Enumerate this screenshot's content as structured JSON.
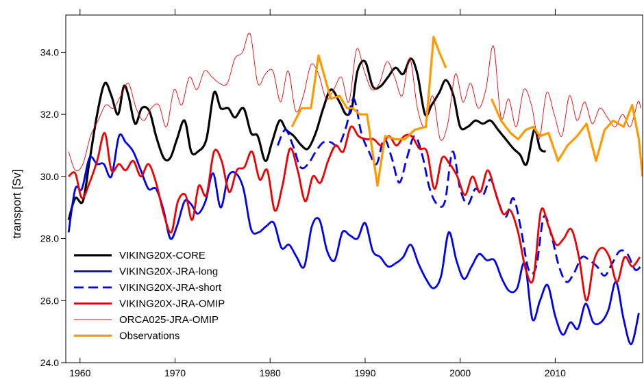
{
  "chart_data": {
    "type": "line",
    "ylabel": "transport [Sv]",
    "xlabel": "",
    "xlim": [
      1958.5,
      2019.2
    ],
    "ylim": [
      24.0,
      35.2
    ],
    "xticks": [
      1960,
      1970,
      1980,
      1990,
      2000,
      2010
    ],
    "xtick_labels": [
      "1960",
      "1970",
      "1980",
      "1990",
      "2000",
      "2010"
    ],
    "yticks": [
      24,
      26,
      28,
      30,
      32,
      34
    ],
    "ytick_labels": [
      "24.0",
      "26.0",
      "28.0",
      "30.0",
      "32.0",
      "34.0"
    ],
    "grid": false,
    "legend_position": "lower-left",
    "series": [
      {
        "name": "VIKING20X-CORE",
        "color": "#000000",
        "style": "solid",
        "width": 3.2,
        "x": [
          1958.8,
          1959.5,
          1960.3,
          1961,
          1961.8,
          1962.6,
          1963.3,
          1964,
          1964.6,
          1965.1,
          1965.8,
          1966.5,
          1967.3,
          1968,
          1968.8,
          1969.5,
          1970.2,
          1971,
          1971.7,
          1972.4,
          1973.3,
          1974.1,
          1974.8,
          1975.6,
          1976.3,
          1977.2,
          1978,
          1978.7,
          1979.5,
          1980.2,
          1981,
          1981.7,
          1982.5,
          1983.3,
          1984,
          1984.8,
          1985.6,
          1986.4,
          1987.3,
          1988,
          1988.6,
          1989.2,
          1990,
          1990.8,
          1991.6,
          1992.4,
          1993.2,
          1994,
          1994.8,
          1995.5,
          1996.3,
          1997,
          1997.8,
          1998.5,
          1999.3,
          2000,
          2000.8,
          2001.6,
          2002.4,
          2003.2,
          2004,
          2004.8,
          2005.6,
          2006.3,
          2007,
          2007.8,
          2008.4,
          2009
        ],
        "y": [
          28.6,
          29.3,
          29.2,
          30.5,
          32.0,
          33.0,
          32.6,
          32.0,
          32.9,
          32.6,
          31.7,
          32.2,
          32.1,
          31.3,
          30.6,
          30.6,
          31.2,
          31.8,
          30.8,
          30.8,
          31.2,
          32.7,
          32.2,
          32.2,
          31.9,
          32.2,
          31.4,
          31.3,
          30.5,
          31.1,
          31.8,
          31.5,
          31.3,
          31.0,
          30.9,
          31.4,
          32.2,
          32.8,
          32.4,
          32.0,
          32.2,
          33.4,
          33.7,
          32.9,
          32.9,
          33.2,
          33.5,
          33.3,
          33.8,
          33.3,
          32.0,
          32.3,
          32.7,
          33.1,
          32.6,
          31.6,
          31.6,
          31.8,
          31.7,
          31.8,
          31.5,
          31.2,
          30.9,
          30.7,
          30.4,
          31.5,
          30.9,
          30.8
        ]
      },
      {
        "name": "VIKING20X-JRA-long",
        "color": "#0000ee",
        "style": "solid",
        "width": 2.8,
        "x": [
          1958.8,
          1959.5,
          1960.2,
          1961,
          1961.8,
          1962.5,
          1963.3,
          1964.1,
          1964.8,
          1965.6,
          1966.4,
          1967.2,
          1968,
          1968.8,
          1969.5,
          1970.2,
          1971,
          1971.7,
          1972.4,
          1973.2,
          1974,
          1974.8,
          1975.6,
          1976.4,
          1977.2,
          1978,
          1978.8,
          1979.6,
          1980.4,
          1981.2,
          1982,
          1982.8,
          1983.6,
          1984.4,
          1985.2,
          1986,
          1986.8,
          1987.6,
          1988.4,
          1989.2,
          1990,
          1990.8,
          1991.6,
          1992.4,
          1993.2,
          1994,
          1994.8,
          1995.6,
          1996.4,
          1997.2,
          1998,
          1998.8,
          1999.6,
          2000.4,
          2001.2,
          2002,
          2002.8,
          2003.6,
          2004.4,
          2005.2,
          2006,
          2006.8,
          2007.6,
          2008.4,
          2009.2,
          2010,
          2010.8,
          2011.6,
          2012.4,
          2013.2,
          2014,
          2014.8,
          2015.6,
          2016.4,
          2017.2,
          2018,
          2018.8
        ],
        "y": [
          28.2,
          29.6,
          29.6,
          30.6,
          30.4,
          30.4,
          30.0,
          31.3,
          31.1,
          30.8,
          30.2,
          29.6,
          29.6,
          28.9,
          28.0,
          28.4,
          29.2,
          29.1,
          28.8,
          29.2,
          30.1,
          29.0,
          30.0,
          30.1,
          29.6,
          28.3,
          28.2,
          28.4,
          28.5,
          27.7,
          27.8,
          27.4,
          27.1,
          28.4,
          28.6,
          27.6,
          27.3,
          28.2,
          28.1,
          28.0,
          28.5,
          27.6,
          27.4,
          27.1,
          27.2,
          27.4,
          27.8,
          27.2,
          26.7,
          26.4,
          26.8,
          28.2,
          27.3,
          26.7,
          27.1,
          27.5,
          27.3,
          27.3,
          26.7,
          26.3,
          26.4,
          27.2,
          25.4,
          26.0,
          26.5,
          25.5,
          24.9,
          25.3,
          25.1,
          25.9,
          25.3,
          25.3,
          25.7,
          26.6,
          25.4,
          24.6,
          25.6
        ]
      },
      {
        "name": "VIKING20X-JRA-short",
        "color": "#0000ee",
        "style": "dashed",
        "width": 2.8,
        "x": [
          1980.8,
          1981.6,
          1982.4,
          1983.2,
          1984,
          1984.8,
          1985.6,
          1986.4,
          1987.2,
          1988,
          1988.8,
          1989.6,
          1990.4,
          1991.2,
          1992,
          1992.8,
          1993.6,
          1994.4,
          1995.2,
          1996,
          1996.8,
          1997.6,
          1998.4,
          1999.2,
          2000,
          2000.8,
          2001.6,
          2002.4,
          2003.2,
          2004,
          2004.8,
          2005.6,
          2006.4,
          2007.2,
          2008,
          2008.8,
          2009.6,
          2010.4,
          2011.2,
          2012,
          2012.8,
          2013.6,
          2014.4,
          2015.2,
          2016,
          2016.8,
          2017.6,
          2018.4,
          2019
        ],
        "y": [
          31.0,
          31.5,
          31.0,
          30.3,
          30.4,
          30.8,
          31.1,
          31.1,
          31.0,
          31.6,
          32.5,
          31.4,
          30.8,
          30.4,
          31.2,
          30.6,
          29.8,
          30.6,
          31.3,
          30.7,
          29.6,
          29.1,
          29.2,
          30.8,
          29.6,
          29.1,
          29.6,
          29.4,
          29.9,
          29.2,
          28.7,
          29.3,
          28.3,
          27.0,
          27.1,
          28.7,
          28.1,
          27.1,
          26.6,
          26.9,
          27.4,
          27.3,
          27.1,
          26.8,
          27.2,
          27.6,
          27.5,
          27.0,
          27.1
        ]
      },
      {
        "name": "VIKING20X-JRA-OMIP",
        "color": "#ee0000",
        "style": "solid",
        "width": 2.8,
        "x": [
          1958.8,
          1959.5,
          1960.2,
          1961,
          1961.8,
          1962.6,
          1963.3,
          1964.1,
          1964.8,
          1965.6,
          1966.4,
          1967.2,
          1968,
          1968.8,
          1969.6,
          1970.3,
          1971.1,
          1971.8,
          1972.5,
          1973.3,
          1974.1,
          1974.9,
          1975.7,
          1976.5,
          1977.3,
          1978.1,
          1978.9,
          1979.7,
          1980.5,
          1981.3,
          1982.1,
          1982.9,
          1983.7,
          1984.5,
          1985.3,
          1986.1,
          1986.9,
          1987.7,
          1988.5,
          1989.3,
          1990.1,
          1990.9,
          1991.7,
          1992.5,
          1993.3,
          1994.1,
          1994.9,
          1995.7,
          1996.5,
          1997.3,
          1998.1,
          1998.9,
          1999.7,
          2000.5,
          2001.3,
          2002.1,
          2002.9,
          2003.7,
          2004.5,
          2005.3,
          2006.1,
          2006.9,
          2007.7,
          2008.5,
          2009.3,
          2010.1,
          2010.9,
          2011.7,
          2012.5,
          2013.3,
          2014.1,
          2014.9,
          2015.7,
          2016.5,
          2017.3,
          2018.1,
          2018.9
        ],
        "y": [
          30.0,
          30.1,
          29.3,
          29.8,
          30.5,
          31.4,
          30.2,
          30.4,
          30.2,
          30.5,
          30.0,
          30.4,
          29.8,
          28.8,
          28.2,
          29.2,
          29.4,
          28.6,
          29.7,
          29.4,
          30.8,
          30.5,
          29.5,
          30.2,
          30.3,
          30.8,
          29.9,
          30.2,
          28.9,
          29.7,
          30.9,
          30.2,
          29.2,
          30.0,
          29.8,
          30.5,
          31.0,
          30.8,
          31.6,
          31.3,
          31.2,
          31.2,
          31.0,
          31.3,
          31.0,
          31.3,
          31.3,
          30.9,
          30.8,
          29.6,
          30.6,
          30.4,
          30.0,
          29.4,
          30.0,
          29.5,
          30.2,
          29.5,
          28.8,
          28.9,
          28.2,
          27.0,
          26.7,
          28.9,
          28.4,
          27.8,
          28.0,
          28.3,
          27.4,
          26.0,
          27.3,
          27.7,
          27.4,
          26.6,
          27.4,
          27.1,
          27.4
        ]
      },
      {
        "name": "ORCA025-JRA-OMIP",
        "color": "#ee0000",
        "style": "solid",
        "width": 0.9,
        "x": [
          1958.8,
          1959.5,
          1960.3,
          1961.1,
          1961.9,
          1962.7,
          1963.5,
          1964.3,
          1965.1,
          1965.9,
          1966.7,
          1967.5,
          1968.3,
          1969.1,
          1969.9,
          1970.7,
          1971.5,
          1972.3,
          1973.1,
          1973.9,
          1974.7,
          1975.5,
          1976.3,
          1977.1,
          1977.9,
          1978.7,
          1979.5,
          1980.3,
          1981.1,
          1981.9,
          1982.7,
          1983.5,
          1984.3,
          1985.1,
          1985.9,
          1986.7,
          1987.5,
          1988.3,
          1989.1,
          1989.9,
          1990.7,
          1991.5,
          1992.3,
          1993.1,
          1993.9,
          1994.7,
          1995.5,
          1996.3,
          1997.1,
          1997.9,
          1998.7,
          1999.5,
          2000.3,
          2001.1,
          2001.9,
          2002.7,
          2003.5,
          2004.3,
          2005.1,
          2005.9,
          2006.7,
          2007.5,
          2008.3,
          2009.1,
          2009.9,
          2010.7,
          2011.5,
          2012.3,
          2013.1,
          2013.9,
          2014.7,
          2015.5,
          2016.3,
          2017.1,
          2017.9,
          2018.7,
          2019
        ],
        "y": [
          30.8,
          30.2,
          30.4,
          31.3,
          31.8,
          32.3,
          32.2,
          32.6,
          33.0,
          32.2,
          31.8,
          32.2,
          32.3,
          31.6,
          32.8,
          32.3,
          33.2,
          32.8,
          33.4,
          33.2,
          33.0,
          33.0,
          33.8,
          34.0,
          34.6,
          33.0,
          33.3,
          33.4,
          32.4,
          33.4,
          32.1,
          32.6,
          33.6,
          33.3,
          32.5,
          32.8,
          33.2,
          32.4,
          34.1,
          33.4,
          32.8,
          33.0,
          33.7,
          33.2,
          32.6,
          33.8,
          32.2,
          31.6,
          32.6,
          31.2,
          31.7,
          33.3,
          32.4,
          33.0,
          32.2,
          32.8,
          34.2,
          31.9,
          32.5,
          31.6,
          32.8,
          32.3,
          31.2,
          32.7,
          32.0,
          31.3,
          32.6,
          31.8,
          32.4,
          31.7,
          32.2,
          31.9,
          31.6,
          32.0,
          31.6,
          32.4,
          32.2
        ]
      },
      {
        "name": "Observations",
        "color": "#ff9900",
        "style": "solid",
        "width": 3.2,
        "segments": [
          {
            "x": [
              1982.3,
              1983.3,
              1984.3,
              1985.1,
              1986.4,
              1987.3,
              1988.1,
              1988.7,
              1989.4,
              1990.2,
              1991.3,
              1992.1,
              1993.2,
              1994.2,
              1995.2,
              1996.4,
              1997.2,
              1997.8,
              1998.5
            ],
            "y": [
              31.6,
              32.2,
              32.2,
              33.9,
              32.5,
              32.6,
              32.2,
              32.2,
              32.0,
              32.0,
              29.7,
              31.3,
              31.2,
              31.2,
              31.5,
              31.6,
              34.5,
              34.0,
              33.5
            ]
          },
          {
            "x": [
              2003.3,
              2004.3,
              2005.3,
              2006.1,
              2006.9,
              2007.7,
              2008.4,
              2009.3,
              2010.3,
              2011.3,
              2012.3,
              2013.3,
              2014.3,
              2015.2,
              2016.1,
              2017.2,
              2018.1,
              2018.8,
              2019.2
            ],
            "y": [
              32.5,
              31.8,
              31.4,
              31.2,
              31.5,
              31.6,
              31.3,
              31.4,
              30.5,
              31.0,
              31.3,
              31.7,
              30.5,
              31.5,
              31.8,
              31.6,
              32.3,
              31.2,
              30.0
            ]
          }
        ]
      }
    ]
  }
}
